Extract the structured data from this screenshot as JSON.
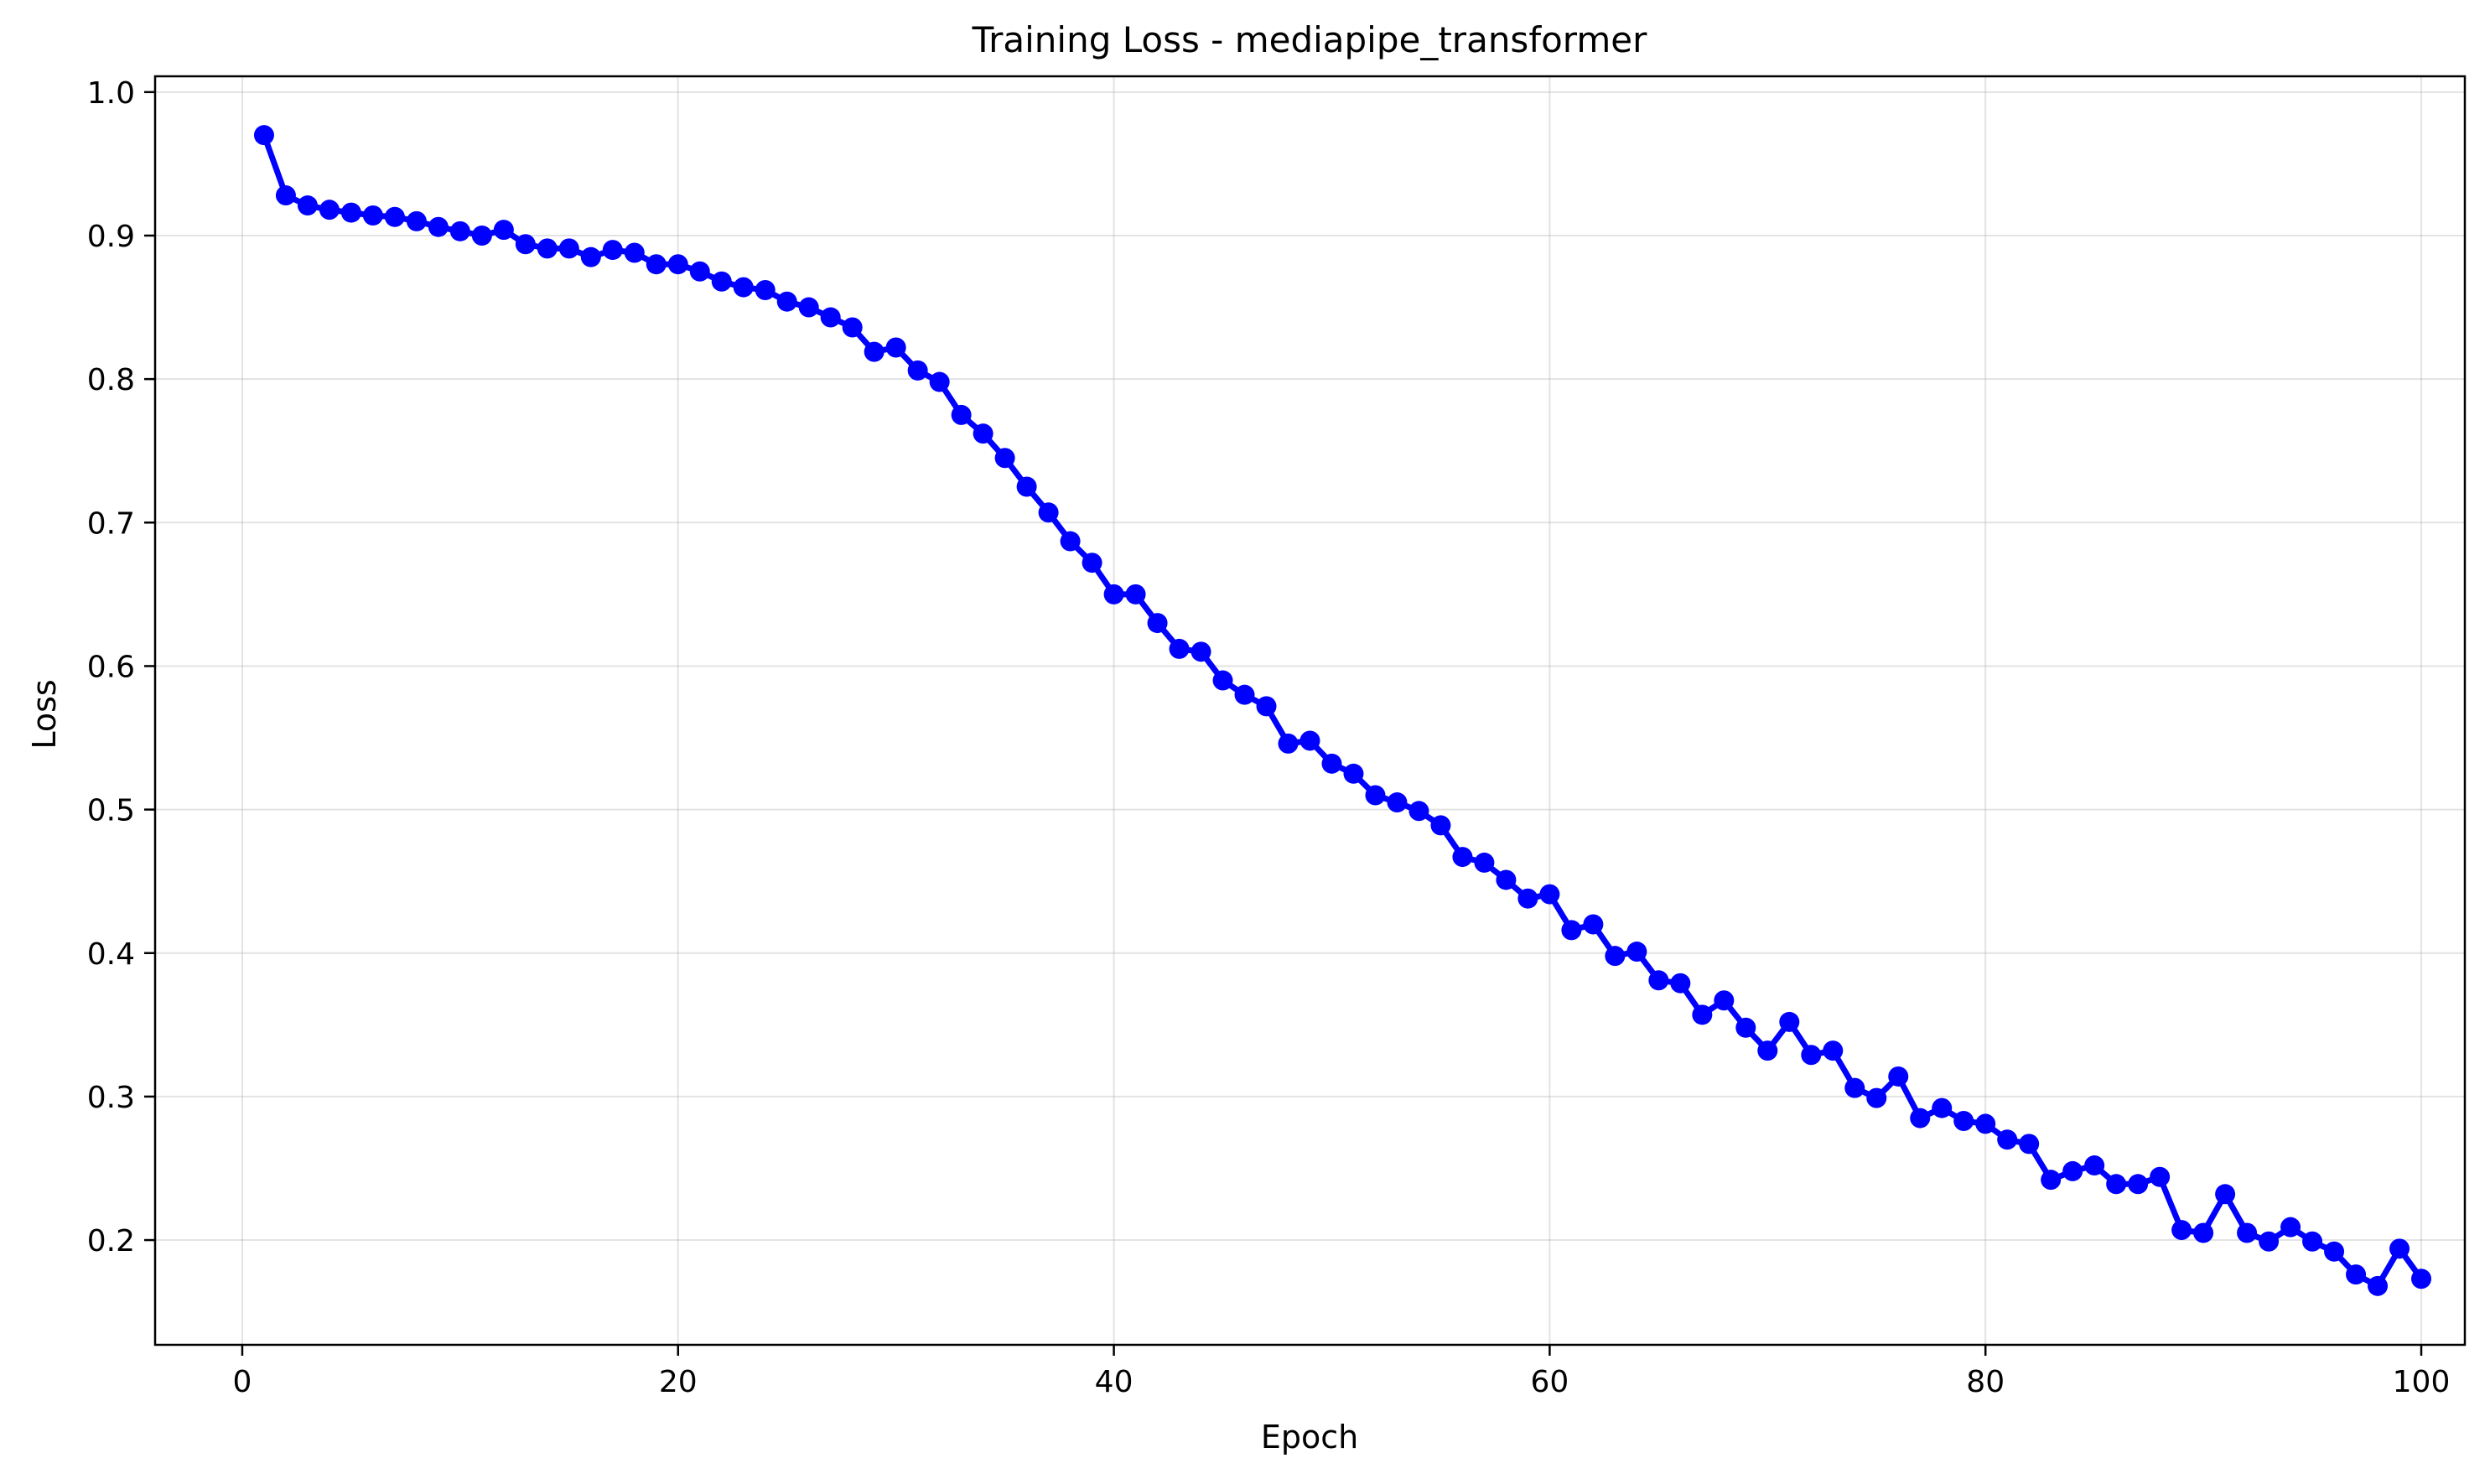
{
  "chart_data": {
    "type": "line",
    "title": "Training Loss - mediapipe_transformer",
    "xlabel": "Epoch",
    "ylabel": "Loss",
    "xlim": [
      -4,
      102
    ],
    "ylim": [
      0.127,
      1.011
    ],
    "xticks": [
      0,
      20,
      40,
      60,
      80,
      100
    ],
    "yticks": [
      0.2,
      0.3,
      0.4,
      0.5,
      0.6,
      0.7,
      0.8,
      0.9,
      1.0
    ],
    "xtick_labels": [
      "0",
      "20",
      "40",
      "60",
      "80",
      "100"
    ],
    "ytick_labels": [
      "0.2",
      "0.3",
      "0.4",
      "0.5",
      "0.6",
      "0.7",
      "0.8",
      "0.9",
      "1.0"
    ],
    "grid": true,
    "legend": "none",
    "series": [
      {
        "color": "#0000ff",
        "marker": "circle",
        "x": [
          1,
          2,
          3,
          4,
          5,
          6,
          7,
          8,
          9,
          10,
          11,
          12,
          13,
          14,
          15,
          16,
          17,
          18,
          19,
          20,
          21,
          22,
          23,
          24,
          25,
          26,
          27,
          28,
          29,
          30,
          31,
          32,
          33,
          34,
          35,
          36,
          37,
          38,
          39,
          40,
          41,
          42,
          43,
          44,
          45,
          46,
          47,
          48,
          49,
          50,
          51,
          52,
          53,
          54,
          55,
          56,
          57,
          58,
          59,
          60,
          61,
          62,
          63,
          64,
          65,
          66,
          67,
          68,
          69,
          70,
          71,
          72,
          73,
          74,
          75,
          76,
          77,
          78,
          79,
          80,
          81,
          82,
          83,
          84,
          85,
          86,
          87,
          88,
          89,
          90,
          91,
          92,
          93,
          94,
          95,
          96,
          97,
          98,
          99,
          100
        ],
        "values": [
          0.97,
          0.928,
          0.921,
          0.918,
          0.916,
          0.914,
          0.913,
          0.91,
          0.906,
          0.903,
          0.9,
          0.904,
          0.894,
          0.891,
          0.891,
          0.885,
          0.89,
          0.888,
          0.88,
          0.88,
          0.875,
          0.868,
          0.864,
          0.862,
          0.854,
          0.85,
          0.843,
          0.836,
          0.819,
          0.822,
          0.806,
          0.798,
          0.775,
          0.762,
          0.745,
          0.725,
          0.707,
          0.687,
          0.672,
          0.65,
          0.65,
          0.63,
          0.612,
          0.61,
          0.59,
          0.58,
          0.572,
          0.546,
          0.548,
          0.532,
          0.525,
          0.51,
          0.505,
          0.499,
          0.489,
          0.467,
          0.463,
          0.451,
          0.438,
          0.441,
          0.416,
          0.42,
          0.398,
          0.401,
          0.381,
          0.379,
          0.357,
          0.367,
          0.348,
          0.332,
          0.352,
          0.329,
          0.332,
          0.306,
          0.299,
          0.314,
          0.285,
          0.292,
          0.283,
          0.281,
          0.27,
          0.267,
          0.242,
          0.248,
          0.252,
          0.239,
          0.239,
          0.244,
          0.207,
          0.205,
          0.232,
          0.205,
          0.199,
          0.209,
          0.199,
          0.192,
          0.176,
          0.168,
          0.194,
          0.173
        ]
      }
    ]
  }
}
